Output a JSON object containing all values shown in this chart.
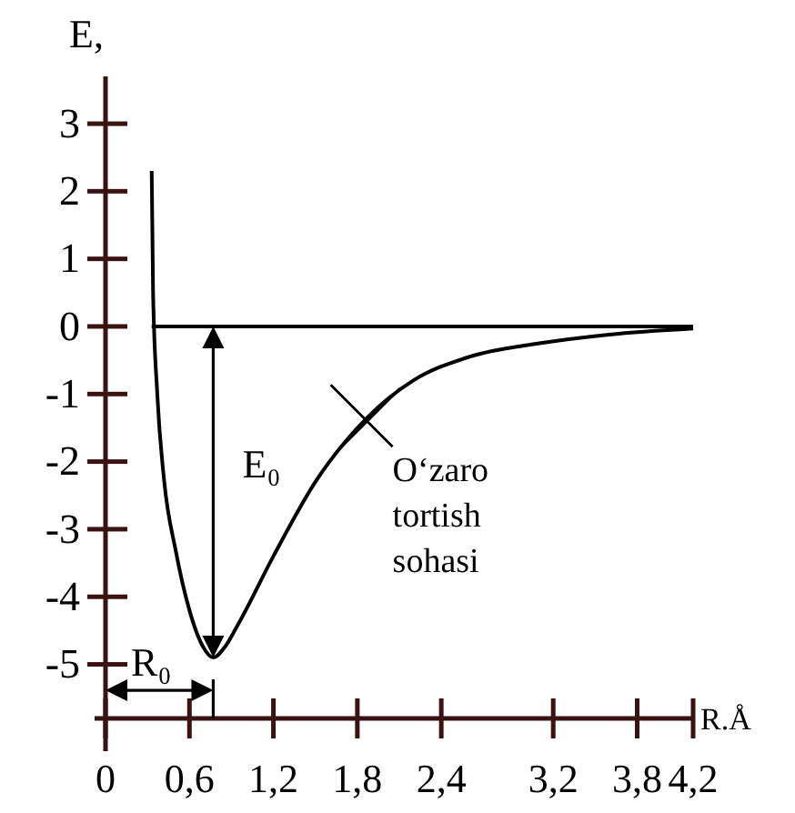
{
  "chart_data": {
    "type": "line",
    "xlabel": "R.Å",
    "ylabel": "E,",
    "xlim": [
      0,
      4.2
    ],
    "ylim": [
      -5.8,
      3.7
    ],
    "xticks": [
      0,
      {
        "value": 0.6,
        "label": "0,6"
      },
      {
        "value": 1.2,
        "label": "1,2"
      },
      {
        "value": 1.8,
        "label": "1,8"
      },
      {
        "value": 2.4,
        "label": "2,4"
      },
      {
        "value": 3.2,
        "label": "3,2"
      },
      {
        "value": 3.8,
        "label": "3,8"
      },
      {
        "value": 4.2,
        "label": "4,2"
      }
    ],
    "yticks": [
      -5,
      -4,
      -3,
      -2,
      -1,
      0,
      1,
      2,
      3
    ],
    "grid": false,
    "marker": "none",
    "line_style": "solid",
    "series": [
      {
        "color": "#000000",
        "x": [
          0.33,
          0.34,
          0.37,
          0.42,
          0.5,
          0.6,
          0.7,
          0.77,
          0.85,
          0.95,
          1.2,
          1.5,
          1.87,
          2.2,
          2.6,
          3.1,
          3.6,
          4.2
        ],
        "values": [
          2.3,
          0.5,
          -1,
          -2.3,
          -3.3,
          -4.2,
          -4.75,
          -4.9,
          -4.75,
          -4.4,
          -3.4,
          -2.3,
          -1.35,
          -0.8,
          -0.45,
          -0.25,
          -0.12,
          -0.03
        ]
      }
    ],
    "ref_lines": [
      {
        "axis": "y",
        "value": 0,
        "color": "#000000"
      }
    ],
    "annotations": [
      "E₀",
      "R₀",
      {
        "text": "O‘zaro tortish sohasi",
        "x": 1.87,
        "y": -1.35
      }
    ]
  }
}
